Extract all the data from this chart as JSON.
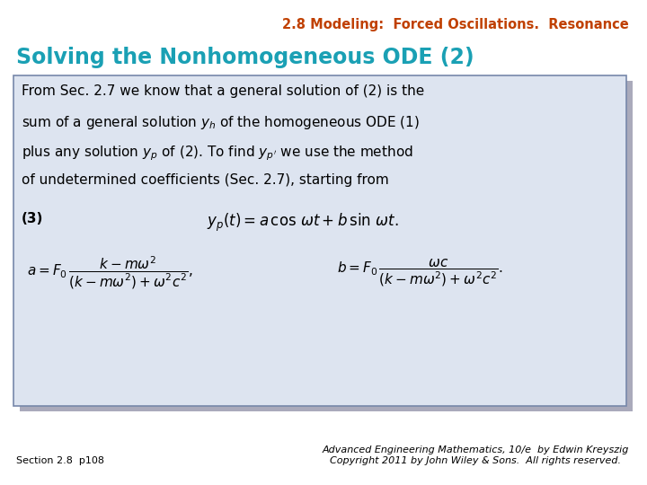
{
  "title": "2.8 Modeling:  Forced Oscillations.  Resonance",
  "title_color": "#C04000",
  "title_fontsize": 10.5,
  "section_heading": "Solving the Nonhomogeneous ODE (2)",
  "section_heading_color": "#1aa0b4",
  "section_heading_fontsize": 17,
  "background_color": "#FFFFFF",
  "box_fill_color": "#dde4f0",
  "box_edge_color": "#7788aa",
  "shadow_color": "#aaaabb",
  "body_fontsize": 11,
  "eq_fontsize": 11,
  "label_eq3": "(3)",
  "footer_left": "Section 2.8  p108",
  "footer_right_line1": "Advanced Engineering Mathematics, 10/e  by Edwin Kreyszig",
  "footer_right_line2": "Copyright 2011 by John Wiley & Sons.  All rights reserved.",
  "footer_fontsize": 8
}
